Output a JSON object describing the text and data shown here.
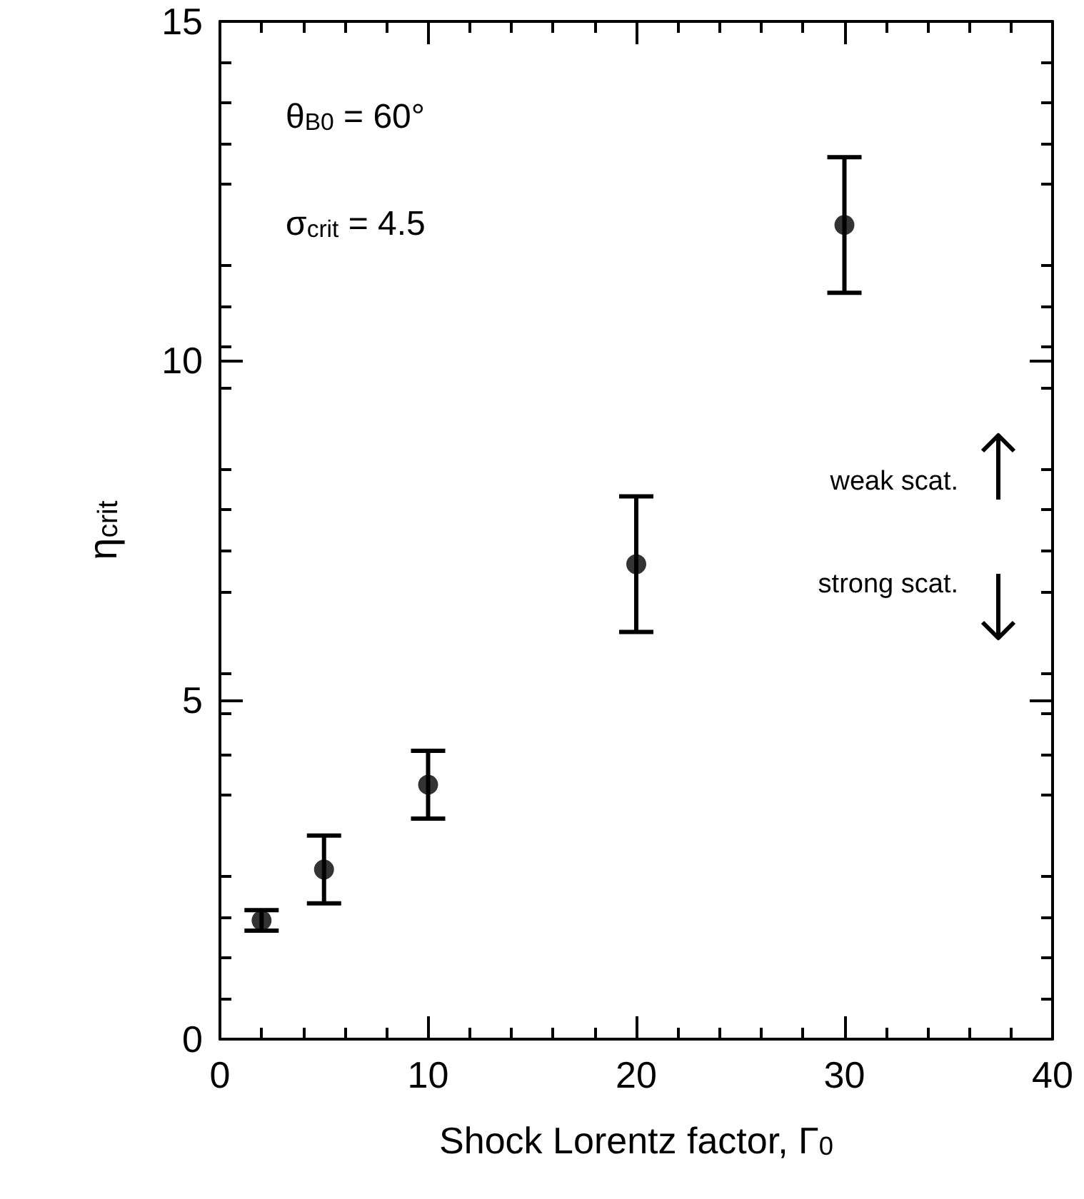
{
  "chart_data": {
    "type": "scatter",
    "xlabel": "Shock Lorentz factor, Γ$_{0}$",
    "ylabel": "η$_{crit}$",
    "x": [
      2,
      5,
      10,
      20,
      30
    ],
    "values": [
      1.75,
      2.5,
      3.75,
      7,
      12
    ],
    "errors": [
      [
        1.6,
        1.9
      ],
      [
        2,
        3
      ],
      [
        3.25,
        4.25
      ],
      [
        6,
        8
      ],
      [
        11,
        13
      ]
    ],
    "color": "#000000",
    "marker": "circle",
    "xlim": [
      0,
      40
    ],
    "ylim": [
      0,
      15
    ],
    "xticks": [
      0,
      10,
      20,
      30,
      40
    ],
    "yticks": [
      0,
      5,
      10,
      15
    ],
    "annotations": [
      "θ$_{B0}$ = 60°",
      "σ$_{crit}$ = 4.5",
      "weak scat.",
      "strong scat."
    ]
  }
}
